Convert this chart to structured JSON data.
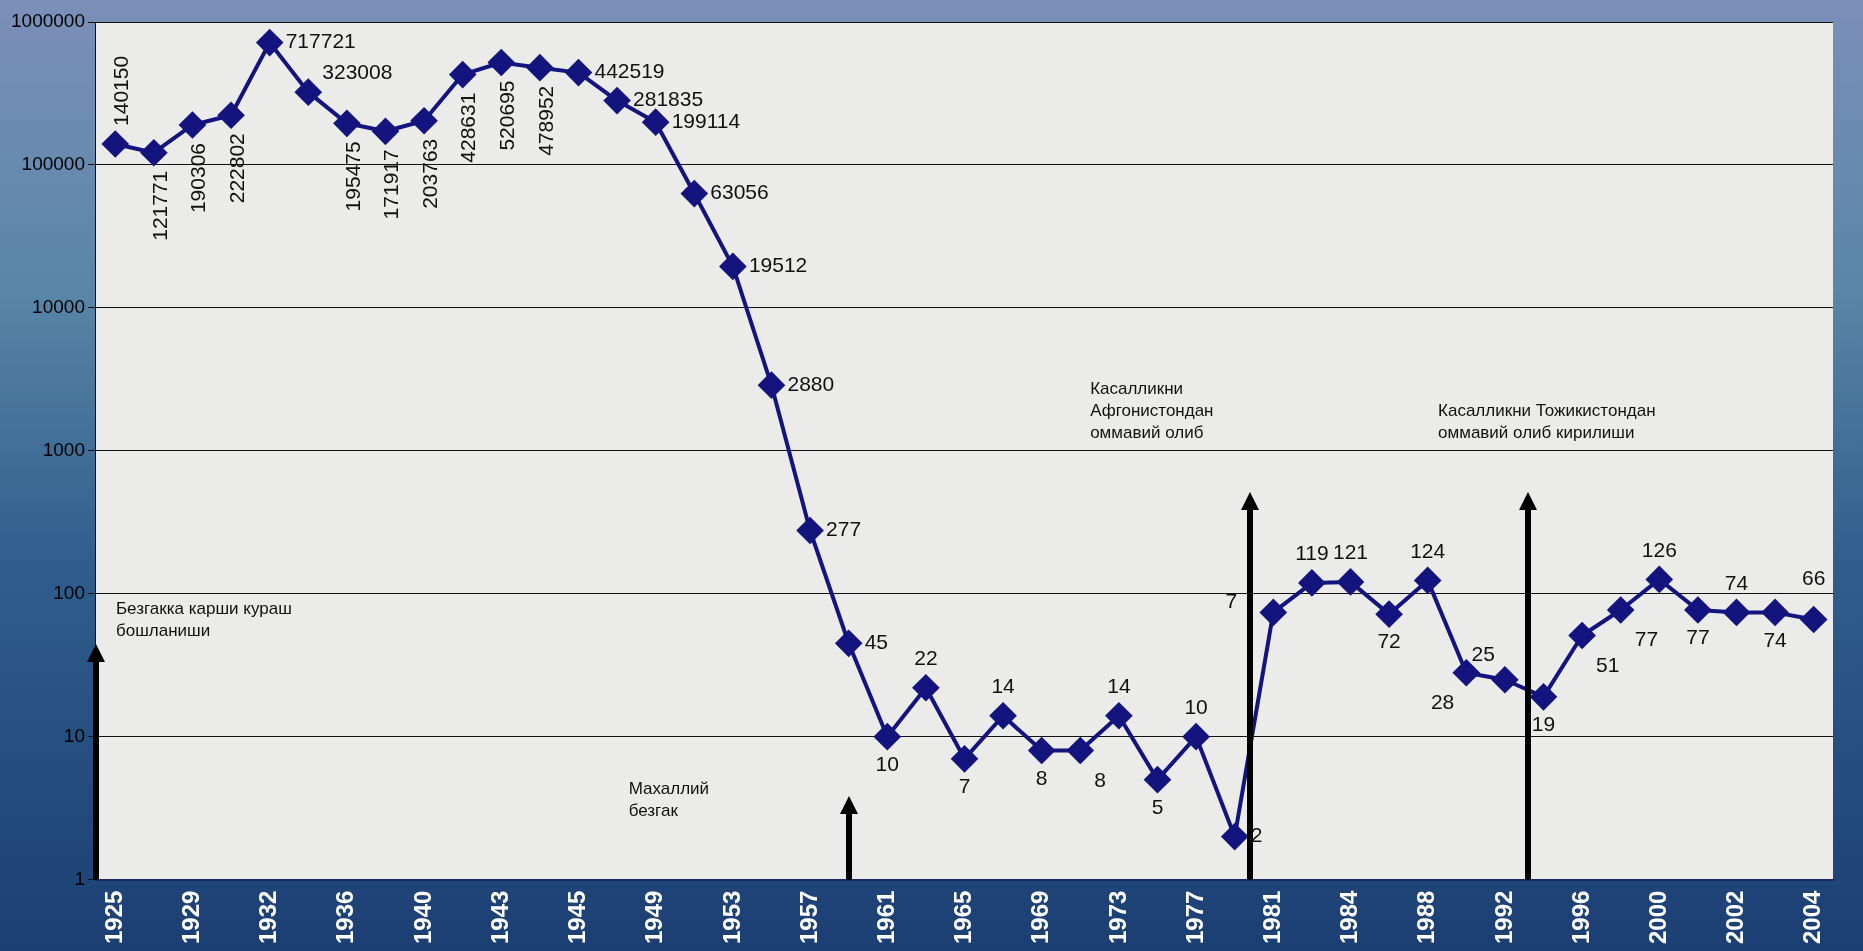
{
  "chart_data": {
    "type": "line",
    "categories": [
      "1925",
      null,
      "1929",
      null,
      "1932",
      null,
      "1936",
      null,
      "1940",
      null,
      "1943",
      null,
      "1945",
      null,
      "1949",
      null,
      "1953",
      null,
      "1957",
      null,
      "1961",
      null,
      "1965",
      null,
      "1969",
      null,
      "1973",
      null,
      "1977",
      null,
      "1981",
      null,
      "1984",
      null,
      "1988",
      null,
      "1992",
      null,
      "1996",
      null,
      "2000",
      null,
      "2002",
      null,
      "2004"
    ],
    "series": [
      {
        "color": "#14147e",
        "values": [
          140150,
          121771,
          190306,
          222802,
          717721,
          323008,
          195475,
          171917,
          203763,
          428631,
          520695,
          478952,
          442519,
          281835,
          199114,
          63056,
          19512,
          2880,
          277,
          45,
          10,
          22,
          7,
          14,
          8,
          8,
          14,
          5,
          10,
          2,
          74,
          119,
          121,
          72,
          124,
          28,
          25,
          19,
          51,
          77,
          126,
          77,
          74,
          74,
          66
        ]
      }
    ],
    "value_labels": [
      "140150",
      "121771",
      "190306",
      "222802",
      "717721",
      "323008",
      "195475",
      "171917",
      "203763",
      "428631",
      "520695",
      "478952",
      "442519",
      "281835",
      "199114",
      "63056",
      "19512",
      "2880",
      "277",
      "45",
      "10",
      "22",
      "7",
      "14",
      "8",
      "8",
      "14",
      "5",
      "10",
      "2",
      "7",
      "119",
      "121",
      "72",
      "124",
      "28",
      "25",
      "19",
      "51",
      "77",
      "126",
      "77",
      "74",
      "74",
      "66"
    ],
    "log": "y",
    "ylim": [
      1,
      1000000
    ],
    "yticks": [
      1,
      10,
      100,
      1000,
      10000,
      100000,
      1000000
    ],
    "grid": "y",
    "legend": false,
    "marker": "diamond",
    "line_style": "solid",
    "annotations": [
      "Безгакка карши кураш бошланиши",
      "Махаллий безгак",
      "Касалликни Афгонистондан оммавий олиб",
      "Касалликни Тожикистондан оммавий олиб кирилиши"
    ]
  }
}
